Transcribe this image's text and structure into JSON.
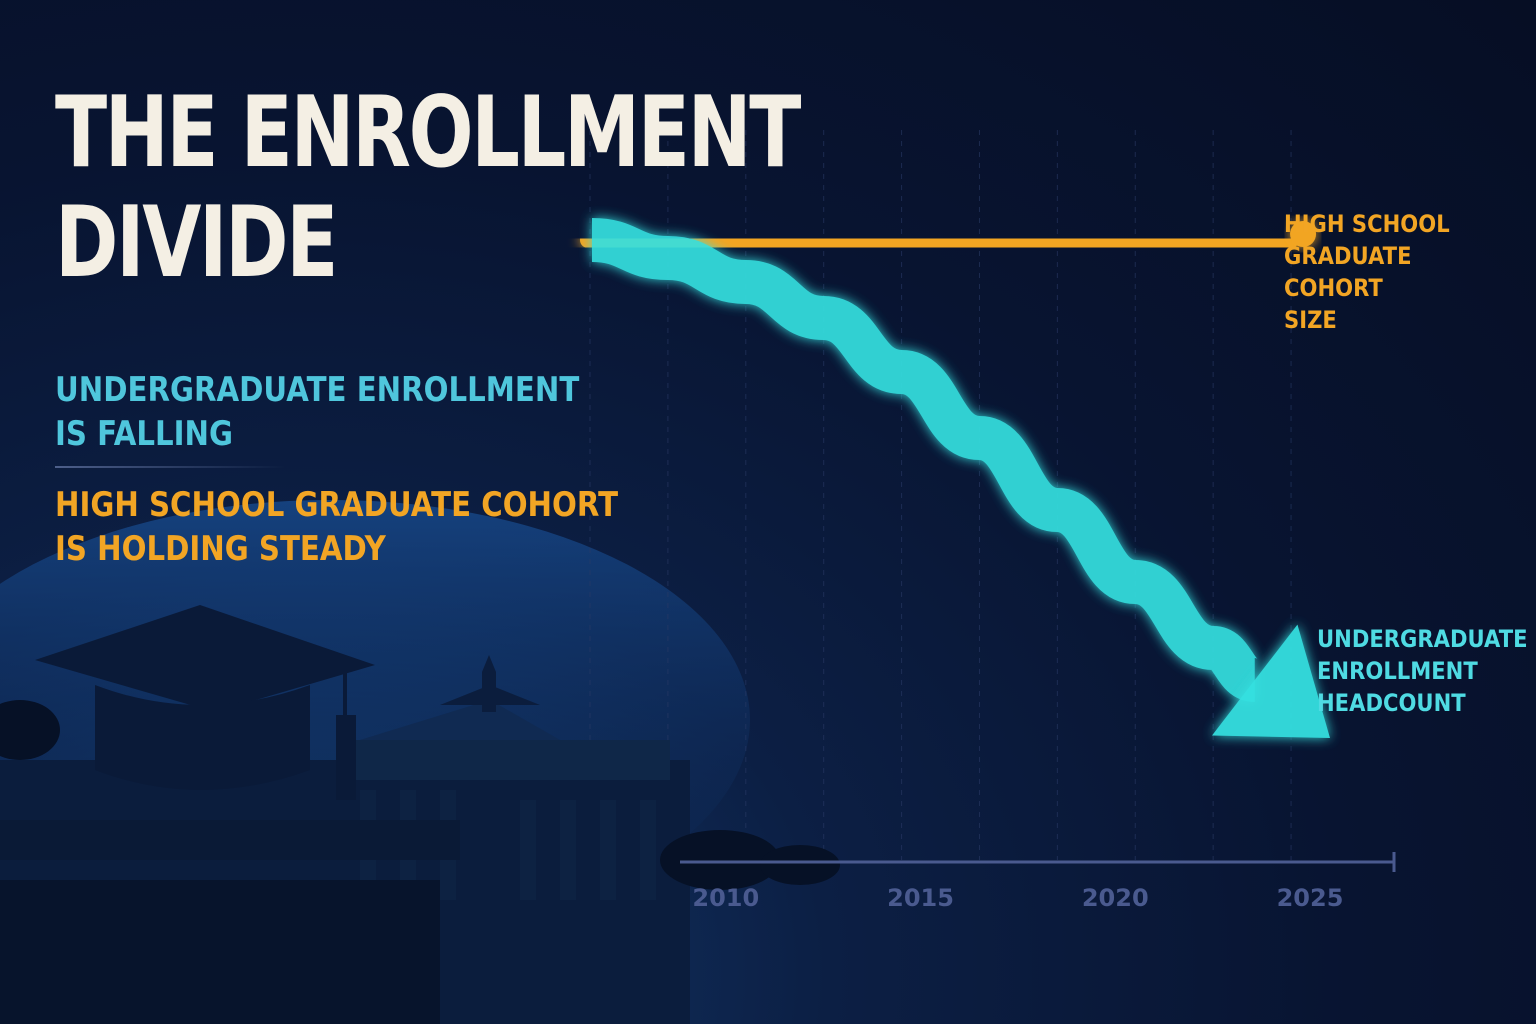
{
  "title_line1": "THE ENROLLMENT",
  "title_line2": "DIVIDE",
  "subtitle_undergrad_line1": "UNDERGRADUATE ENROLLMENT",
  "subtitle_undergrad_line2": "IS FALLING",
  "subtitle_hs_line1": "HIGH SCHOOL GRADUATE COHORT",
  "subtitle_hs_line2": "IS HOLDING STEADY",
  "colors": {
    "background": "#081431",
    "title": "#f4efe4",
    "undergraduate": "#36e0e0",
    "high_school": "#f2a524",
    "axis": "#4a5a8f"
  },
  "icons": [
    "graduation-cap-icon",
    "university-building-icon"
  ],
  "chart_data": {
    "type": "line",
    "x_ticks": [
      2010,
      2015,
      2020,
      2025
    ],
    "grid": "vertical dashed lines",
    "y_axis_shown": false,
    "series": [
      {
        "name": "HIGH SCHOOL GRADUATE COHORT SIZE",
        "label_lines": [
          "HIGH SCHOOL",
          "GRADUATE COHORT",
          "SIZE"
        ],
        "trend": "flat",
        "x": [
          2006,
          2008,
          2010,
          2012,
          2014,
          2016,
          2018,
          2020,
          2022,
          2024
        ],
        "y": [
          100,
          99.5,
          99,
          99.3,
          99.6,
          99.8,
          99.2,
          99.7,
          99.9,
          100
        ],
        "color": "#f2a524"
      },
      {
        "name": "UNDERGRADUATE ENROLLMENT HEADCOUNT",
        "label_lines": [
          "UNDERGRADUATE",
          "ENROLLMENT",
          "HEADCOUNT"
        ],
        "trend": "falling",
        "x": [
          2006,
          2008,
          2010,
          2012,
          2014,
          2016,
          2018,
          2020,
          2022,
          2025
        ],
        "y": [
          100,
          97,
          93,
          87,
          78,
          67,
          55,
          43,
          32,
          17
        ],
        "color": "#36e0e0"
      }
    ]
  }
}
